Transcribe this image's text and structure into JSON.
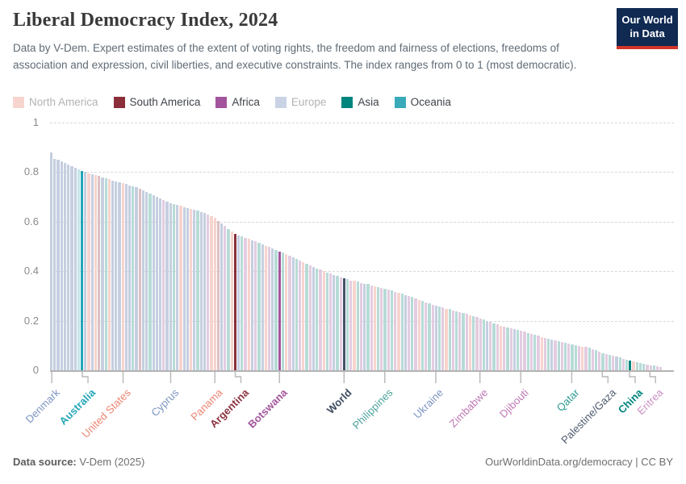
{
  "header": {
    "title": "Liberal Democracy Index, 2024",
    "subtitle": "Data by V-Dem. Expert estimates of the extent of voting rights, the freedom and fairness of elections, freedoms of association and expression, civil liberties, and executive constraints. The index ranges from 0 to 1 (most democratic)."
  },
  "logo": {
    "line1": "Our World",
    "line2": "in Data",
    "bg": "#102a52",
    "stripe": "#d2342a"
  },
  "legend": [
    {
      "label": "North America",
      "swatch": "#f7d4ce",
      "text_color": "#b3b3b3"
    },
    {
      "label": "South America",
      "swatch": "#8b2e39",
      "text_color": "#3f434a"
    },
    {
      "label": "Africa",
      "swatch": "#a2559c",
      "text_color": "#3f434a"
    },
    {
      "label": "Europe",
      "swatch": "#c9d3e5",
      "text_color": "#b3b3b3"
    },
    {
      "label": "Asia",
      "swatch": "#00847e",
      "text_color": "#3f434a"
    },
    {
      "label": "Oceania",
      "swatch": "#38aaba",
      "text_color": "#3f434a"
    }
  ],
  "footer": {
    "source_label": "Data source:",
    "source_rest": " V-Dem (2025)",
    "right": "OurWorldinData.org/democracy | CC BY"
  },
  "chart_data": {
    "type": "bar",
    "title": "Liberal Democracy Index, 2024",
    "ylabel": "",
    "ylim": [
      0,
      1
    ],
    "grid": "dashed-horizontal",
    "y_ticks": [
      {
        "value": 1,
        "label": "1"
      },
      {
        "value": 0.8,
        "label": "0.8"
      },
      {
        "value": 0.6,
        "label": "0.6"
      },
      {
        "value": 0.4,
        "label": "0.4"
      },
      {
        "value": 0.2,
        "label": "0.2"
      },
      {
        "value": 0,
        "label": "0"
      }
    ],
    "colors": {
      "faded": {
        "N": "#f7d4ce",
        "S": "#dbc1c4",
        "F": "#e3cce1",
        "E": "#c5cfe0",
        "A": "#b7dbd7",
        "O": "#c3e5e9"
      },
      "full": {
        "N": "#e56e5a",
        "S": "#883039",
        "F": "#a2559c",
        "E": "#4c6a9c",
        "A": "#00847e",
        "O": "#21a6b6",
        "W": "#465168"
      }
    },
    "continent_key": {
      "N": "North America",
      "S": "South America",
      "F": "Africa",
      "E": "Europe",
      "A": "Asia",
      "O": "Oceania",
      "W": "World"
    },
    "continents": "EEEEEEEEOOENENSEANEEENEEAESEEAEEEFEEAENEENEAEEFNNSEFANSEAFNEFAENFEAFANFEAFNAFEAFNAFEAFWAFNAFEAFNAFAFAFNAEFAFNAFAFEAFNAFAFAFNAFFAEFAFNFAFEAFFAFAFNFAEFAFAFAAFNFAFAFAFAFEAFAANAAAFFAFF",
    "values": [
      0.88,
      0.855,
      0.85,
      0.844,
      0.837,
      0.831,
      0.824,
      0.818,
      0.811,
      0.805,
      0.8,
      0.796,
      0.792,
      0.788,
      0.784,
      0.78,
      0.775,
      0.771,
      0.767,
      0.763,
      0.759,
      0.755,
      0.751,
      0.747,
      0.744,
      0.74,
      0.734,
      0.727,
      0.721,
      0.714,
      0.708,
      0.701,
      0.695,
      0.688,
      0.682,
      0.675,
      0.671,
      0.667,
      0.663,
      0.659,
      0.656,
      0.652,
      0.648,
      0.644,
      0.64,
      0.634,
      0.628,
      0.621,
      0.615,
      0.604,
      0.593,
      0.582,
      0.571,
      0.56,
      0.55,
      0.545,
      0.54,
      0.535,
      0.53,
      0.525,
      0.52,
      0.514,
      0.509,
      0.503,
      0.497,
      0.491,
      0.486,
      0.48,
      0.474,
      0.468,
      0.461,
      0.455,
      0.449,
      0.443,
      0.436,
      0.43,
      0.424,
      0.418,
      0.412,
      0.406,
      0.4,
      0.395,
      0.39,
      0.385,
      0.38,
      0.375,
      0.37,
      0.367,
      0.363,
      0.36,
      0.357,
      0.353,
      0.35,
      0.347,
      0.343,
      0.34,
      0.337,
      0.333,
      0.33,
      0.326,
      0.321,
      0.317,
      0.313,
      0.309,
      0.304,
      0.3,
      0.295,
      0.29,
      0.285,
      0.28,
      0.275,
      0.27,
      0.265,
      0.26,
      0.256,
      0.253,
      0.249,
      0.246,
      0.242,
      0.239,
      0.235,
      0.231,
      0.227,
      0.223,
      0.219,
      0.214,
      0.21,
      0.205,
      0.2,
      0.195,
      0.19,
      0.185,
      0.18,
      0.177,
      0.173,
      0.17,
      0.167,
      0.163,
      0.16,
      0.156,
      0.151,
      0.147,
      0.143,
      0.139,
      0.134,
      0.13,
      0.127,
      0.124,
      0.121,
      0.118,
      0.114,
      0.111,
      0.108,
      0.105,
      0.102,
      0.099,
      0.096,
      0.093,
      0.09,
      0.085,
      0.08,
      0.075,
      0.07,
      0.066,
      0.062,
      0.059,
      0.055,
      0.051,
      0.047,
      0.044,
      0.04,
      0.037,
      0.033,
      0.03,
      0.027,
      0.023,
      0.02,
      0.018,
      0.016,
      0.013
    ],
    "highlights": {
      "9": "Australia",
      "54": "Argentina",
      "67": "Botswana",
      "86": "World",
      "170": "China"
    },
    "x_labels": [
      {
        "index": 0,
        "text": "Denmark",
        "value": 0.88,
        "color": "#7b93c0",
        "bold": false,
        "elbow": false
      },
      {
        "index": 9,
        "text": "Australia",
        "value": 0.805,
        "color": "#21a6b6",
        "bold": true,
        "elbow": true
      },
      {
        "index": 21,
        "text": "United States",
        "value": 0.755,
        "color": "#ec8370",
        "bold": false,
        "elbow": false
      },
      {
        "index": 35,
        "text": "Cyprus",
        "value": 0.675,
        "color": "#7b93c0",
        "bold": false,
        "elbow": false
      },
      {
        "index": 48,
        "text": "Panama",
        "value": 0.615,
        "color": "#ec8370",
        "bold": false,
        "elbow": false
      },
      {
        "index": 54,
        "text": "Argentina",
        "value": 0.55,
        "color": "#8b3341",
        "bold": true,
        "elbow": true
      },
      {
        "index": 67,
        "text": "Botswana",
        "value": 0.48,
        "color": "#a2559c",
        "bold": true,
        "elbow": false
      },
      {
        "index": 86,
        "text": "World",
        "value": 0.37,
        "color": "#3d4b5e",
        "bold": true,
        "elbow": false
      },
      {
        "index": 98,
        "text": "Philippines",
        "value": 0.33,
        "color": "#4aa29b",
        "bold": false,
        "elbow": false
      },
      {
        "index": 113,
        "text": "Ukraine",
        "value": 0.26,
        "color": "#7b93c0",
        "bold": false,
        "elbow": false
      },
      {
        "index": 126,
        "text": "Zimbabwe",
        "value": 0.21,
        "color": "#bd76b4",
        "bold": false,
        "elbow": false
      },
      {
        "index": 138,
        "text": "Djibouti",
        "value": 0.16,
        "color": "#bd76b4",
        "bold": false,
        "elbow": false
      },
      {
        "index": 153,
        "text": "Qatar",
        "value": 0.105,
        "color": "#2e9a91",
        "bold": false,
        "elbow": false
      },
      {
        "index": 162,
        "text": "Palestine/Gaza",
        "value": 0.07,
        "color": "#4d5a6d",
        "bold": false,
        "elbow": true
      },
      {
        "index": 170,
        "text": "China",
        "value": 0.04,
        "color": "#00847e",
        "bold": true,
        "elbow": true
      },
      {
        "index": 176,
        "text": "Eritrea",
        "value": 0.02,
        "color": "#cb8fc3",
        "bold": false,
        "elbow": true
      }
    ]
  }
}
